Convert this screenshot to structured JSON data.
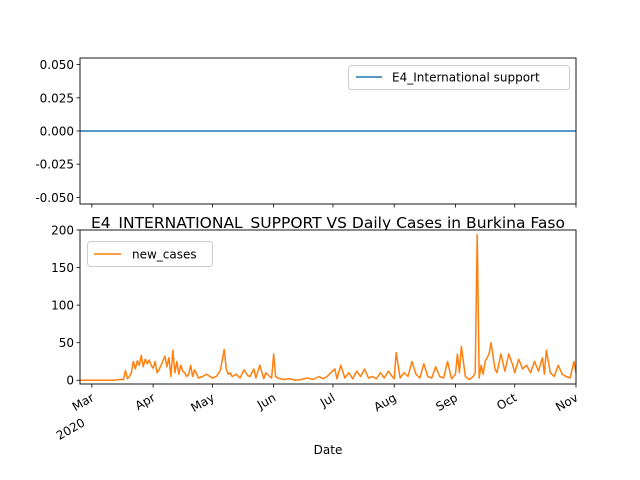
{
  "chart_data": [
    {
      "type": "line",
      "title": "",
      "xlabel": "",
      "ylabel": "",
      "x_range": [
        "2020-02-24",
        "2020-11-01"
      ],
      "ylim": [
        -0.055,
        0.055
      ],
      "yticks": [
        "0.050",
        "0.025",
        "0.000",
        "-0.025",
        "-0.050"
      ],
      "ytick_values": [
        0.05,
        0.025,
        0.0,
        -0.025,
        -0.05
      ],
      "grid": false,
      "legend": "upper right",
      "series": [
        {
          "name": "E4_International support",
          "color": "#1f77b4",
          "x": [
            "2020-02-24",
            "2020-11-01"
          ],
          "y": [
            0,
            0
          ]
        }
      ]
    },
    {
      "type": "line",
      "title": "E4_INTERNATIONAL_SUPPORT VS Daily Cases in Burkina Faso",
      "xlabel": "Date",
      "ylabel": "",
      "x_range": [
        "2020-02-24",
        "2020-11-01"
      ],
      "ylim": [
        -5,
        200
      ],
      "yticks": [
        "200",
        "150",
        "100",
        "50",
        "0"
      ],
      "ytick_values": [
        200,
        150,
        100,
        50,
        0
      ],
      "xticks": [
        {
          "date": "2020-03-01",
          "label": "Mar",
          "sub": "2020"
        },
        {
          "date": "2020-04-01",
          "label": "Apr",
          "sub": ""
        },
        {
          "date": "2020-05-01",
          "label": "May",
          "sub": ""
        },
        {
          "date": "2020-06-01",
          "label": "Jun",
          "sub": ""
        },
        {
          "date": "2020-07-01",
          "label": "Jul",
          "sub": ""
        },
        {
          "date": "2020-08-01",
          "label": "Aug",
          "sub": ""
        },
        {
          "date": "2020-09-01",
          "label": "Sep",
          "sub": ""
        },
        {
          "date": "2020-10-01",
          "label": "Oct",
          "sub": ""
        },
        {
          "date": "2020-11-01",
          "label": "Nov",
          "sub": ""
        }
      ],
      "grid": false,
      "legend": "upper left",
      "series": [
        {
          "name": "new_cases",
          "color": "#ff7f0e",
          "x": [
            "2020-02-24",
            "2020-03-09",
            "2020-03-12",
            "2020-03-15",
            "2020-03-17",
            "2020-03-18",
            "2020-03-19",
            "2020-03-20",
            "2020-03-21",
            "2020-03-22",
            "2020-03-23",
            "2020-03-24",
            "2020-03-25",
            "2020-03-26",
            "2020-03-27",
            "2020-03-28",
            "2020-03-29",
            "2020-03-30",
            "2020-03-31",
            "2020-04-01",
            "2020-04-02",
            "2020-04-03",
            "2020-04-04",
            "2020-04-05",
            "2020-04-06",
            "2020-04-07",
            "2020-04-08",
            "2020-04-09",
            "2020-04-10",
            "2020-04-11",
            "2020-04-12",
            "2020-04-13",
            "2020-04-14",
            "2020-04-15",
            "2020-04-16",
            "2020-04-17",
            "2020-04-18",
            "2020-04-19",
            "2020-04-20",
            "2020-04-21",
            "2020-04-22",
            "2020-04-24",
            "2020-04-26",
            "2020-04-28",
            "2020-05-01",
            "2020-05-03",
            "2020-05-05",
            "2020-05-07",
            "2020-05-08",
            "2020-05-09",
            "2020-05-10",
            "2020-05-11",
            "2020-05-13",
            "2020-05-15",
            "2020-05-17",
            "2020-05-19",
            "2020-05-20",
            "2020-05-22",
            "2020-05-23",
            "2020-05-25",
            "2020-05-27",
            "2020-05-28",
            "2020-05-30",
            "2020-05-31",
            "2020-06-01",
            "2020-06-02",
            "2020-06-03",
            "2020-06-06",
            "2020-06-09",
            "2020-06-12",
            "2020-06-15",
            "2020-06-18",
            "2020-06-21",
            "2020-06-24",
            "2020-06-26",
            "2020-06-28",
            "2020-06-30",
            "2020-07-02",
            "2020-07-03",
            "2020-07-05",
            "2020-07-07",
            "2020-07-09",
            "2020-07-11",
            "2020-07-13",
            "2020-07-15",
            "2020-07-17",
            "2020-07-19",
            "2020-07-21",
            "2020-07-23",
            "2020-07-25",
            "2020-07-27",
            "2020-07-29",
            "2020-07-31",
            "2020-08-01",
            "2020-08-02",
            "2020-08-04",
            "2020-08-06",
            "2020-08-08",
            "2020-08-10",
            "2020-08-12",
            "2020-08-14",
            "2020-08-16",
            "2020-08-18",
            "2020-08-20",
            "2020-08-22",
            "2020-08-24",
            "2020-08-26",
            "2020-08-28",
            "2020-08-30",
            "2020-09-01",
            "2020-09-02",
            "2020-09-03",
            "2020-09-04",
            "2020-09-06",
            "2020-09-07",
            "2020-09-08",
            "2020-09-10",
            "2020-09-11",
            "2020-09-12",
            "2020-09-13",
            "2020-09-14",
            "2020-09-15",
            "2020-09-16",
            "2020-09-18",
            "2020-09-19",
            "2020-09-21",
            "2020-09-22",
            "2020-09-24",
            "2020-09-26",
            "2020-09-28",
            "2020-09-30",
            "2020-10-01",
            "2020-10-03",
            "2020-10-05",
            "2020-10-07",
            "2020-10-09",
            "2020-10-11",
            "2020-10-13",
            "2020-10-15",
            "2020-10-16",
            "2020-10-17",
            "2020-10-19",
            "2020-10-21",
            "2020-10-23",
            "2020-10-25",
            "2020-10-27",
            "2020-10-29",
            "2020-10-31",
            "2020-11-01"
          ],
          "y": [
            0,
            0,
            0,
            1,
            1,
            13,
            2,
            5,
            10,
            25,
            15,
            26,
            20,
            33,
            18,
            28,
            22,
            27,
            20,
            16,
            25,
            10,
            14,
            20,
            26,
            32,
            18,
            30,
            5,
            40,
            10,
            25,
            8,
            20,
            12,
            10,
            5,
            8,
            20,
            5,
            14,
            3,
            5,
            8,
            3,
            5,
            13,
            41,
            15,
            8,
            10,
            5,
            8,
            3,
            14,
            6,
            5,
            15,
            3,
            20,
            2,
            10,
            5,
            3,
            35,
            5,
            3,
            1,
            2,
            0,
            1,
            3,
            1,
            5,
            2,
            5,
            10,
            15,
            2,
            20,
            3,
            10,
            2,
            12,
            5,
            15,
            3,
            5,
            2,
            10,
            3,
            12,
            5,
            2,
            37,
            3,
            10,
            5,
            25,
            8,
            3,
            22,
            5,
            3,
            18,
            5,
            3,
            25,
            2,
            8,
            35,
            10,
            45,
            5,
            3,
            1,
            5,
            10,
            194,
            3,
            20,
            8,
            25,
            35,
            50,
            15,
            10,
            35,
            12,
            35,
            20,
            10,
            28,
            15,
            20,
            10,
            25,
            12,
            30,
            8,
            40,
            10,
            5,
            20,
            8,
            5,
            3,
            25,
            10
          ]
        }
      ]
    }
  ]
}
